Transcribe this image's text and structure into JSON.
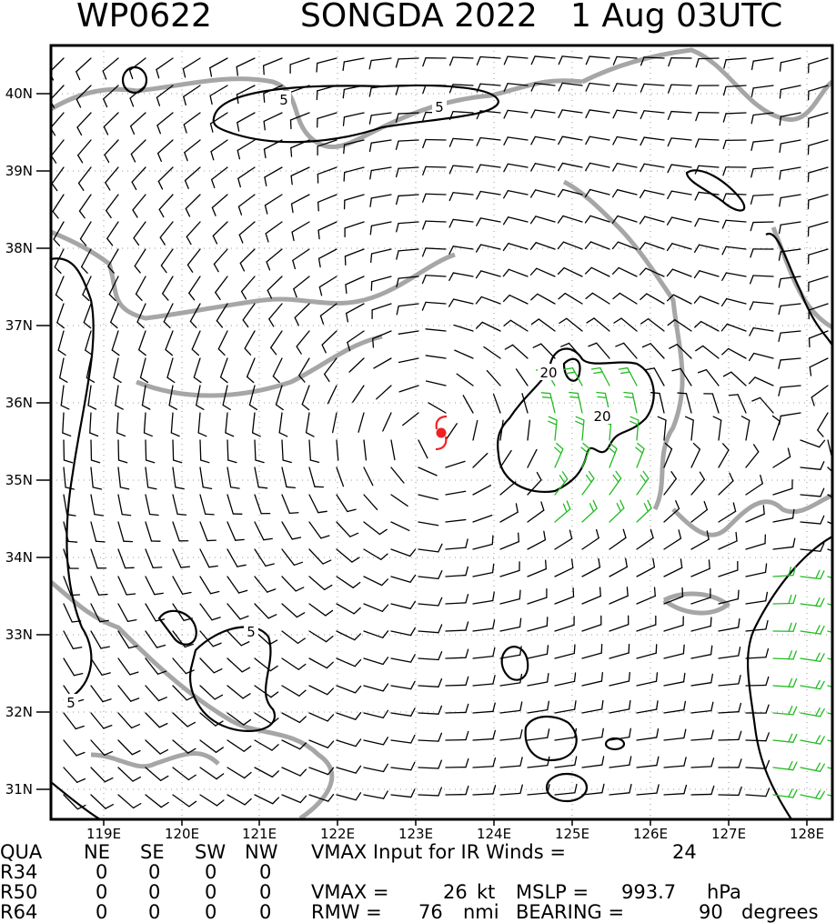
{
  "header": {
    "storm_id": "WP0622",
    "storm_name_year": "SONGDA 2022",
    "datetime": "1 Aug 03UTC"
  },
  "map": {
    "lon_range": [
      118.45,
      128.45
    ],
    "lat_range": [
      30.6,
      40.6
    ],
    "lon_ticks": [
      "119E",
      "120E",
      "121E",
      "122E",
      "123E",
      "124E",
      "125E",
      "126E",
      "127E",
      "128E"
    ],
    "lat_ticks": [
      "31N",
      "32N",
      "33N",
      "34N",
      "35N",
      "36N",
      "37N",
      "38N",
      "39N",
      "40N"
    ],
    "storm_center": {
      "lon": 123.35,
      "lat": 35.6
    },
    "contour_labels": [
      "5",
      "5",
      "5",
      "5",
      "20",
      "20"
    ],
    "colors": {
      "coastline": "#a6a6a6",
      "contour": "#000000",
      "barb": "#000000",
      "barb_strong": "#22bb22",
      "storm_symbol": "#ee2222",
      "grid": "#9a9a9a"
    },
    "storm_icon": "tropical-storm-icon"
  },
  "table": {
    "quadrant_header": [
      "QUA",
      "NE",
      "SE",
      "SW",
      "NW"
    ],
    "rows": [
      {
        "label": "R34",
        "values": [
          "0",
          "0",
          "0",
          "0"
        ]
      },
      {
        "label": "R50",
        "values": [
          "0",
          "0",
          "0",
          "0"
        ]
      },
      {
        "label": "R64",
        "values": [
          "0",
          "0",
          "0",
          "0"
        ]
      }
    ],
    "vmax_ir_label": "VMAX Input for IR Winds =",
    "vmax_ir_value": "24",
    "vmax_label": "VMAX =",
    "vmax_value": "26",
    "vmax_unit": "kt",
    "mslp_label": "MSLP =",
    "mslp_value": "993.7",
    "mslp_unit": "hPa",
    "rmw_label": "RMW =",
    "rmw_value": "76",
    "rmw_unit": "nmi",
    "bearing_label": "BEARING =",
    "bearing_value": "90",
    "bearing_unit": "degrees"
  }
}
